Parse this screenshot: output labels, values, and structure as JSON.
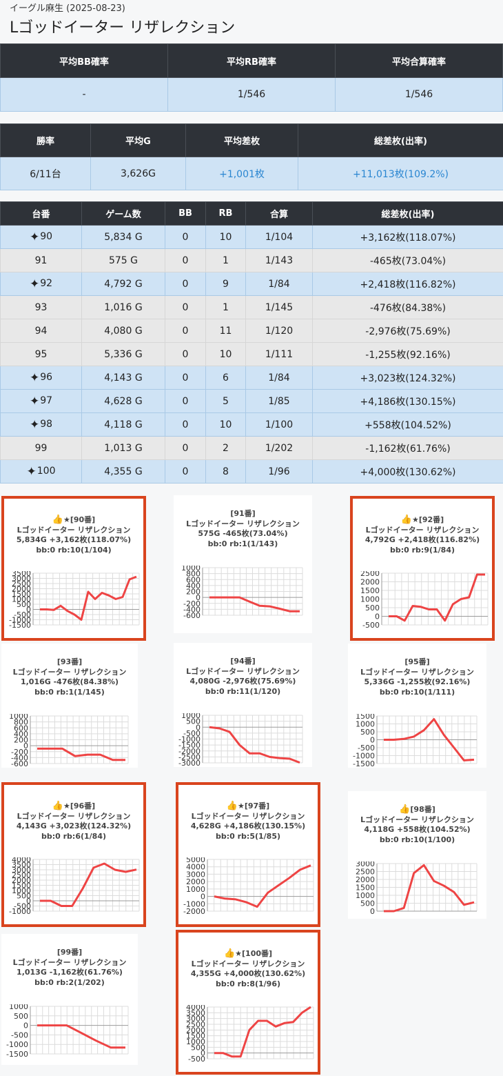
{
  "header": {
    "subtitle": "イーグル麻生 (2025-08-23)",
    "title": "Lゴッドイーター リザレクション"
  },
  "summary1": {
    "headers": [
      "平均BB確率",
      "平均RB確率",
      "平均合算確率"
    ],
    "values": [
      "-",
      "1/546",
      "1/546"
    ]
  },
  "summary2": {
    "headers": [
      "勝率",
      "平均G",
      "平均差枚",
      "総差枚(出率)"
    ],
    "values": [
      "6/11台",
      "3,626G",
      "+1,001枚",
      "+11,013枚(109.2%)"
    ]
  },
  "machines_table": {
    "headers": [
      "台番",
      "ゲーム数",
      "BB",
      "RB",
      "合算",
      "総差枚(出率)"
    ],
    "rows": [
      {
        "num": "90",
        "games": "5,834 G",
        "bb": "0",
        "rb": "10",
        "total": "1/104",
        "diff": "+3,162枚(118.07%)",
        "win": true
      },
      {
        "num": "91",
        "games": "575 G",
        "bb": "0",
        "rb": "1",
        "total": "1/143",
        "diff": "-465枚(73.04%)",
        "win": false
      },
      {
        "num": "92",
        "games": "4,792 G",
        "bb": "0",
        "rb": "9",
        "total": "1/84",
        "diff": "+2,418枚(116.82%)",
        "win": true
      },
      {
        "num": "93",
        "games": "1,016 G",
        "bb": "0",
        "rb": "1",
        "total": "1/145",
        "diff": "-476枚(84.38%)",
        "win": false
      },
      {
        "num": "94",
        "games": "4,080 G",
        "bb": "0",
        "rb": "11",
        "total": "1/120",
        "diff": "-2,976枚(75.69%)",
        "win": false
      },
      {
        "num": "95",
        "games": "5,336 G",
        "bb": "0",
        "rb": "10",
        "total": "1/111",
        "diff": "-1,255枚(92.16%)",
        "win": false
      },
      {
        "num": "96",
        "games": "4,143 G",
        "bb": "0",
        "rb": "6",
        "total": "1/84",
        "diff": "+3,023枚(124.32%)",
        "win": true
      },
      {
        "num": "97",
        "games": "4,628 G",
        "bb": "0",
        "rb": "5",
        "total": "1/85",
        "diff": "+4,186枚(130.15%)",
        "win": true
      },
      {
        "num": "98",
        "games": "4,118 G",
        "bb": "0",
        "rb": "10",
        "total": "1/100",
        "diff": "+558枚(104.52%)",
        "win": true
      },
      {
        "num": "99",
        "games": "1,013 G",
        "bb": "0",
        "rb": "2",
        "total": "1/202",
        "diff": "-1,162枚(61.76%)",
        "win": false
      },
      {
        "num": "100",
        "games": "4,355 G",
        "bb": "0",
        "rb": "8",
        "total": "1/96",
        "diff": "+4,000枚(130.62%)",
        "win": true
      }
    ]
  },
  "icons": {
    "sparkle": "sparkle-icon",
    "thumbs_up": "thumbs-up-icon",
    "star": "star-icon"
  },
  "colors": {
    "header_bg": "#2e3238",
    "win_row": "#cfe3f5",
    "lose_row": "#e8e8e8",
    "plus_text": "#2a86d1",
    "card_border": "#d9441e",
    "line": "#ee4444"
  },
  "cards": [
    {
      "label": "[90番]",
      "badge": "★",
      "thumb": true,
      "model": "Lゴッドイーター リザレクション",
      "stats": "5,834G +3,162枚(118.07%)",
      "counts": "bb:0 rb:10(1/104)"
    },
    {
      "label": "[91番]",
      "badge": "",
      "thumb": false,
      "model": "Lゴッドイーター リザレクション",
      "stats": "575G -465枚(73.04%)",
      "counts": "bb:0 rb:1(1/143)"
    },
    {
      "label": "[92番]",
      "badge": "★",
      "thumb": true,
      "model": "Lゴッドイーター リザレクション",
      "stats": "4,792G +2,418枚(116.82%)",
      "counts": "bb:0 rb:9(1/84)"
    },
    {
      "label": "[93番]",
      "badge": "",
      "thumb": false,
      "model": "Lゴッドイーター リザレクション",
      "stats": "1,016G -476枚(84.38%)",
      "counts": "bb:0 rb:1(1/145)"
    },
    {
      "label": "[94番]",
      "badge": "",
      "thumb": false,
      "model": "Lゴッドイーター リザレクション",
      "stats": "4,080G -2,976枚(75.69%)",
      "counts": "bb:0 rb:11(1/120)"
    },
    {
      "label": "[95番]",
      "badge": "",
      "thumb": false,
      "model": "Lゴッドイーター リザレクション",
      "stats": "5,336G -1,255枚(92.16%)",
      "counts": "bb:0 rb:10(1/111)"
    },
    {
      "label": "[96番]",
      "badge": "★",
      "thumb": true,
      "model": "Lゴッドイーター リザレクション",
      "stats": "4,143G +3,023枚(124.32%)",
      "counts": "bb:0 rb:6(1/84)"
    },
    {
      "label": "[97番]",
      "badge": "★",
      "thumb": true,
      "model": "Lゴッドイーター リザレクション",
      "stats": "4,628G +4,186枚(130.15%)",
      "counts": "bb:0 rb:5(1/85)"
    },
    {
      "label": "[98番]",
      "badge": "",
      "thumb": true,
      "model": "Lゴッドイーター リザレクション",
      "stats": "4,118G +558枚(104.52%)",
      "counts": "bb:0 rb:10(1/100)"
    },
    {
      "label": "[99番]",
      "badge": "",
      "thumb": false,
      "model": "Lゴッドイーター リザレクション",
      "stats": "1,013G -1,162枚(61.76%)",
      "counts": "bb:0 rb:2(1/202)"
    },
    {
      "label": "[100番]",
      "badge": "★",
      "thumb": true,
      "model": "Lゴッドイーター リザレクション",
      "stats": "4,355G +4,000枚(130.62%)",
      "counts": "bb:0 rb:8(1/96)"
    }
  ],
  "chart_data": [
    {
      "type": "line",
      "ticks": [
        "3500",
        "3000",
        "2500",
        "2000",
        "1500",
        "1000",
        "500",
        "0",
        "-500",
        "-1000",
        "-1500"
      ],
      "ylim": [
        -1500,
        3500
      ],
      "values": [
        0,
        0,
        -50,
        350,
        -150,
        -500,
        -1000,
        1700,
        1000,
        1600,
        1350,
        1000,
        1200,
        2900,
        3162
      ]
    },
    {
      "type": "line",
      "ticks": [
        "1000",
        "800",
        "600",
        "400",
        "200",
        "0",
        "-200",
        "-400",
        "-600"
      ],
      "ylim": [
        -600,
        1000
      ],
      "values": [
        0,
        0,
        0,
        0,
        -140,
        -280,
        -300,
        -380,
        -465,
        -465
      ]
    },
    {
      "type": "line",
      "ticks": [
        "2500",
        "2000",
        "1500",
        "1000",
        "500",
        "0",
        "-500"
      ],
      "ylim": [
        -500,
        2500
      ],
      "values": [
        0,
        0,
        -250,
        600,
        550,
        400,
        400,
        -250,
        700,
        1000,
        1100,
        2418,
        2418
      ]
    },
    {
      "type": "line",
      "ticks": [
        "1000",
        "800",
        "600",
        "400",
        "200",
        "0",
        "-200",
        "-400",
        "-600"
      ],
      "ylim": [
        -600,
        1000
      ],
      "values": [
        -100,
        -100,
        -100,
        -350,
        -300,
        -300,
        -476,
        -476
      ]
    },
    {
      "type": "line",
      "ticks": [
        "1000",
        "500",
        "0",
        "-500",
        "-1000",
        "-1500",
        "-2000",
        "-2500",
        "-3000"
      ],
      "ylim": [
        -3000,
        1000
      ],
      "values": [
        0,
        -100,
        -400,
        -1500,
        -2200,
        -2200,
        -2500,
        -2600,
        -2650,
        -2976
      ]
    },
    {
      "type": "line",
      "ticks": [
        "1500",
        "1000",
        "500",
        "0",
        "-500",
        "-1000",
        "-1500"
      ],
      "ylim": [
        -1500,
        1500
      ],
      "values": [
        0,
        0,
        50,
        200,
        600,
        1300,
        300,
        -500,
        -1300,
        -1255
      ]
    },
    {
      "type": "line",
      "ticks": [
        "4000",
        "3500",
        "3000",
        "2500",
        "2000",
        "1500",
        "1000",
        "500",
        "0",
        "-500",
        "-1000"
      ],
      "ylim": [
        -1000,
        4000
      ],
      "values": [
        0,
        0,
        -500,
        -500,
        1200,
        3200,
        3600,
        3000,
        2800,
        3023
      ]
    },
    {
      "type": "line",
      "ticks": [
        "5000",
        "4000",
        "3000",
        "2000",
        "1000",
        "0",
        "-1000",
        "-2000"
      ],
      "ylim": [
        -2000,
        5000
      ],
      "values": [
        0,
        -300,
        -400,
        -800,
        -1400,
        500,
        1500,
        2500,
        3600,
        4186
      ]
    },
    {
      "type": "line",
      "ticks": [
        "3000",
        "2500",
        "2000",
        "1500",
        "1000",
        "500",
        "0"
      ],
      "ylim": [
        0,
        3000
      ],
      "values": [
        0,
        0,
        200,
        2400,
        2900,
        1900,
        1600,
        1200,
        400,
        558
      ]
    },
    {
      "type": "line",
      "ticks": [
        "1000",
        "500",
        "0",
        "-500",
        "-1000",
        "-1500"
      ],
      "ylim": [
        -1500,
        1000
      ],
      "values": [
        0,
        0,
        0,
        -400,
        -800,
        -1162,
        -1162
      ]
    },
    {
      "type": "line",
      "ticks": [
        "4000",
        "3500",
        "3000",
        "2500",
        "2000",
        "1500",
        "1000",
        "500",
        "0",
        "-500"
      ],
      "ylim": [
        -500,
        4000
      ],
      "values": [
        0,
        0,
        -300,
        -300,
        2000,
        2800,
        2800,
        2300,
        2600,
        2700,
        3500,
        4000
      ]
    }
  ]
}
